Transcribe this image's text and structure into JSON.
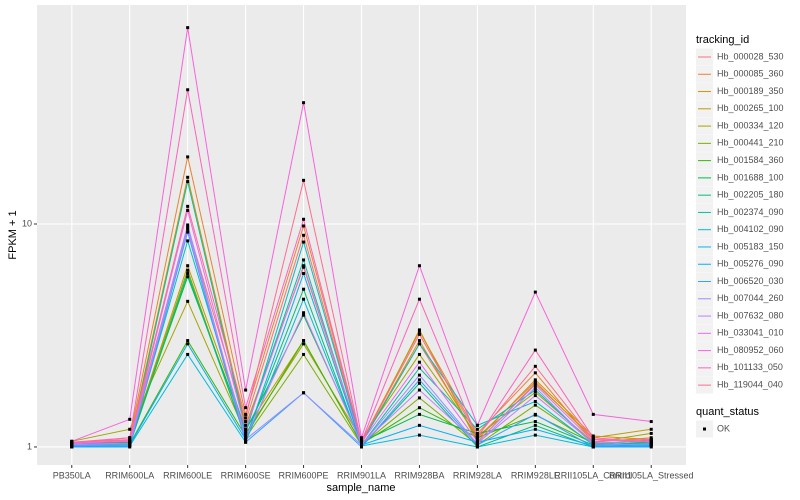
{
  "chart_data": {
    "type": "line",
    "x_label": "sample_name",
    "y_label": "FPKM + 1",
    "y_scale": "log",
    "grid": true,
    "panel_color": "#EBEBEB",
    "categories": [
      "PB350LA",
      "RRIM600LA",
      "RRIM600LE",
      "RRIM600SE",
      "RRIM600PE",
      "RRIM901LA",
      "RRIM928BA",
      "RRIM928LA",
      "RRIM928LE",
      "RRII105LA_Control",
      "RRII105LA_Stressed"
    ],
    "ylim": [
      0.83,
      96
    ],
    "yticks": [
      1,
      10
    ],
    "legend_title": "tracking_id",
    "legend_position": "right",
    "point_legend": {
      "title": "quant_status",
      "labels": [
        "OK"
      ],
      "color": "#000000"
    },
    "series": [
      {
        "name": "Hb_000028_530",
        "color": "#F8766D",
        "values": [
          1.05,
          1.07,
          9.7,
          1.3,
          8.9,
          1.05,
          2.9,
          1.1,
          1.96,
          1.08,
          1.05
        ]
      },
      {
        "name": "Hb_000085_360",
        "color": "#EA8331",
        "values": [
          1.04,
          1.1,
          20,
          1.4,
          9.8,
          1.06,
          3.3,
          1.15,
          2.15,
          1.05,
          1.1
        ]
      },
      {
        "name": "Hb_000189_350",
        "color": "#D89000",
        "values": [
          1.03,
          1.06,
          16.2,
          1.25,
          6.4,
          1.04,
          3.0,
          1.08,
          2.0,
          1.12,
          1.08
        ]
      },
      {
        "name": "Hb_000265_100",
        "color": "#C09B00",
        "values": [
          1.02,
          1.05,
          6.5,
          1.2,
          3.0,
          1.03,
          3.35,
          1.05,
          1.93,
          1.1,
          1.2
        ]
      },
      {
        "name": "Hb_000334_120",
        "color": "#A3A500",
        "values": [
          1.06,
          1.2,
          4.5,
          1.15,
          2.9,
          1.08,
          2.6,
          1.12,
          1.76,
          1.05,
          1.15
        ]
      },
      {
        "name": "Hb_000441_210",
        "color": "#7CAE00",
        "values": [
          1.01,
          1.04,
          6.2,
          1.1,
          2.6,
          1.02,
          1.66,
          1.02,
          1.54,
          1.03,
          1.02
        ]
      },
      {
        "name": "Hb_001584_360",
        "color": "#39B600",
        "values": [
          1.02,
          1.03,
          3.0,
          1.12,
          3.0,
          1.03,
          1.5,
          1.1,
          1.39,
          1.04,
          1.06
        ]
      },
      {
        "name": "Hb_001688_100",
        "color": "#00BB4E",
        "values": [
          1.03,
          1.05,
          5.8,
          1.18,
          3.9,
          1.05,
          1.4,
          1.15,
          1.3,
          1.02,
          1.05
        ]
      },
      {
        "name": "Hb_002205_180",
        "color": "#00BF7D",
        "values": [
          1.0,
          1.02,
          6.0,
          1.1,
          5.1,
          1.0,
          1.93,
          1.0,
          1.25,
          1.0,
          1.03
        ]
      },
      {
        "name": "Hb_002374_090",
        "color": "#00C1A3",
        "values": [
          1.01,
          1.03,
          15.5,
          1.2,
          6.9,
          1.02,
          2.26,
          1.2,
          1.8,
          1.03,
          1.07
        ]
      },
      {
        "name": "Hb_004102_090",
        "color": "#00BFC4",
        "values": [
          1.02,
          1.04,
          8.4,
          1.15,
          8.3,
          1.04,
          2.9,
          1.25,
          1.6,
          1.02,
          1.04
        ]
      },
      {
        "name": "Hb_005183_150",
        "color": "#00BAE0",
        "values": [
          1.0,
          1.01,
          2.6,
          1.05,
          4.6,
          1.01,
          1.13,
          1.0,
          1.13,
          1.0,
          1.01
        ]
      },
      {
        "name": "Hb_005276_090",
        "color": "#00B0F6",
        "values": [
          1.01,
          1.02,
          2.9,
          1.08,
          6.0,
          1.02,
          1.25,
          1.05,
          1.2,
          1.01,
          1.02
        ]
      },
      {
        "name": "Hb_006520_030",
        "color": "#35A2FF",
        "values": [
          1.0,
          1.0,
          9.2,
          1.05,
          1.75,
          1.0,
          2.0,
          1.02,
          1.4,
          1.0,
          1.0
        ]
      },
      {
        "name": "Hb_007044_260",
        "color": "#9590FF",
        "values": [
          1.02,
          1.02,
          9.9,
          1.08,
          1.75,
          1.02,
          2.1,
          1.03,
          1.85,
          1.02,
          1.03
        ]
      },
      {
        "name": "Hb_007632_080",
        "color": "#C77CFF",
        "values": [
          1.03,
          1.04,
          9.5,
          1.1,
          4.0,
          1.03,
          1.8,
          1.04,
          1.7,
          1.04,
          1.06
        ]
      },
      {
        "name": "Hb_033041_010",
        "color": "#E76BF3",
        "values": [
          1.04,
          1.06,
          11.5,
          1.2,
          6.5,
          1.05,
          2.4,
          1.06,
          1.9,
          1.06,
          1.08
        ]
      },
      {
        "name": "Hb_080952_060",
        "color": "#FA62DB",
        "values": [
          1.06,
          1.33,
          76,
          1.8,
          35,
          1.1,
          6.5,
          1.25,
          4.95,
          1.4,
          1.3
        ]
      },
      {
        "name": "Hb_101133_050",
        "color": "#FF62BC",
        "values": [
          1.05,
          1.1,
          40,
          1.5,
          10.5,
          1.06,
          4.6,
          1.1,
          2.72,
          1.1,
          1.05
        ]
      },
      {
        "name": "Hb_119044_040",
        "color": "#FF6C91",
        "values": [
          1.05,
          1.08,
          12,
          1.35,
          15.7,
          1.05,
          3.2,
          1.12,
          2.3,
          1.08,
          1.07
        ]
      }
    ]
  }
}
